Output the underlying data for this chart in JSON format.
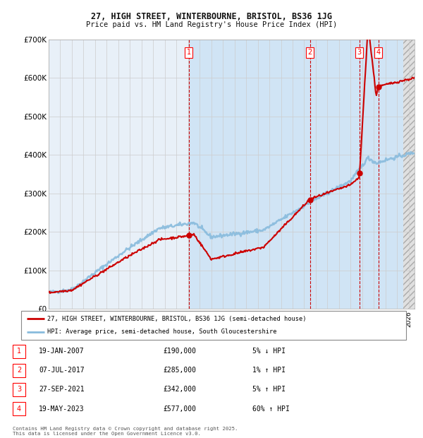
{
  "title_line1": "27, HIGH STREET, WINTERBOURNE, BRISTOL, BS36 1JG",
  "title_line2": "Price paid vs. HM Land Registry's House Price Index (HPI)",
  "legend_line1": "27, HIGH STREET, WINTERBOURNE, BRISTOL, BS36 1JG (semi-detached house)",
  "legend_line2": "HPI: Average price, semi-detached house, South Gloucestershire",
  "footnote": "Contains HM Land Registry data © Crown copyright and database right 2025.\nThis data is licensed under the Open Government Licence v3.0.",
  "transactions": [
    {
      "num": 1,
      "date": "19-JAN-2007",
      "price": 190000,
      "pct": "5%",
      "dir": "↓",
      "year_x": 2007.05
    },
    {
      "num": 2,
      "date": "07-JUL-2017",
      "price": 285000,
      "pct": "1%",
      "dir": "↑",
      "year_x": 2017.5
    },
    {
      "num": 3,
      "date": "27-SEP-2021",
      "price": 342000,
      "pct": "5%",
      "dir": "↑",
      "year_x": 2021.75
    },
    {
      "num": 4,
      "date": "19-MAY-2023",
      "price": 577000,
      "pct": "60%",
      "dir": "↑",
      "year_x": 2023.38
    }
  ],
  "background_color": "#ffffff",
  "plot_bg_all": "#e8f0f8",
  "plot_bg_owned": "#d0e4f5",
  "hatch_bg": "#e0e0e0",
  "grid_color": "#cccccc",
  "hpi_color": "#88bbdd",
  "price_color": "#cc0000",
  "dashed_color": "#cc0000",
  "marker_color": "#cc0000",
  "ylim": [
    0,
    700000
  ],
  "xlim_start": 1995,
  "xlim_end": 2026.5,
  "yticks": [
    0,
    100000,
    200000,
    300000,
    400000,
    500000,
    600000,
    700000
  ],
  "ytick_labels": [
    "£0",
    "£100K",
    "£200K",
    "£300K",
    "£400K",
    "£500K",
    "£600K",
    "£700K"
  ]
}
